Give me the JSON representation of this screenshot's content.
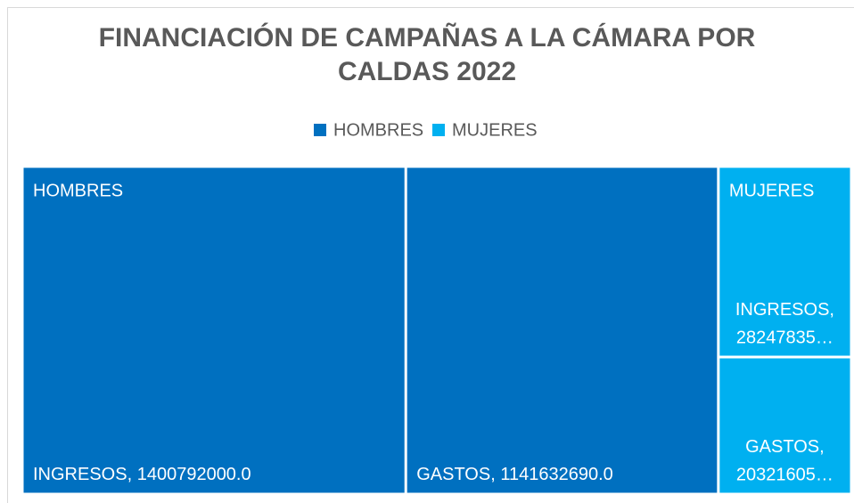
{
  "chart_data": {
    "type": "treemap",
    "title": "FINANCIACIÓN DE CAMPAÑAS A LA CÁMARA POR CALDAS 2022",
    "series": [
      {
        "name": "HOMBRES",
        "color": "#0070c0",
        "categories": [
          "INGRESOS",
          "GASTOS"
        ],
        "values": [
          1400792000,
          1141632690
        ],
        "value_labels": [
          "1400792000.0",
          "1141632690.0"
        ]
      },
      {
        "name": "MUJERES",
        "color": "#00b0f0",
        "categories": [
          "INGRESOS",
          "GASTOS"
        ],
        "values": [
          282478350,
          203216050
        ],
        "value_labels": [
          "28247835…",
          "20321605…"
        ]
      }
    ]
  }
}
